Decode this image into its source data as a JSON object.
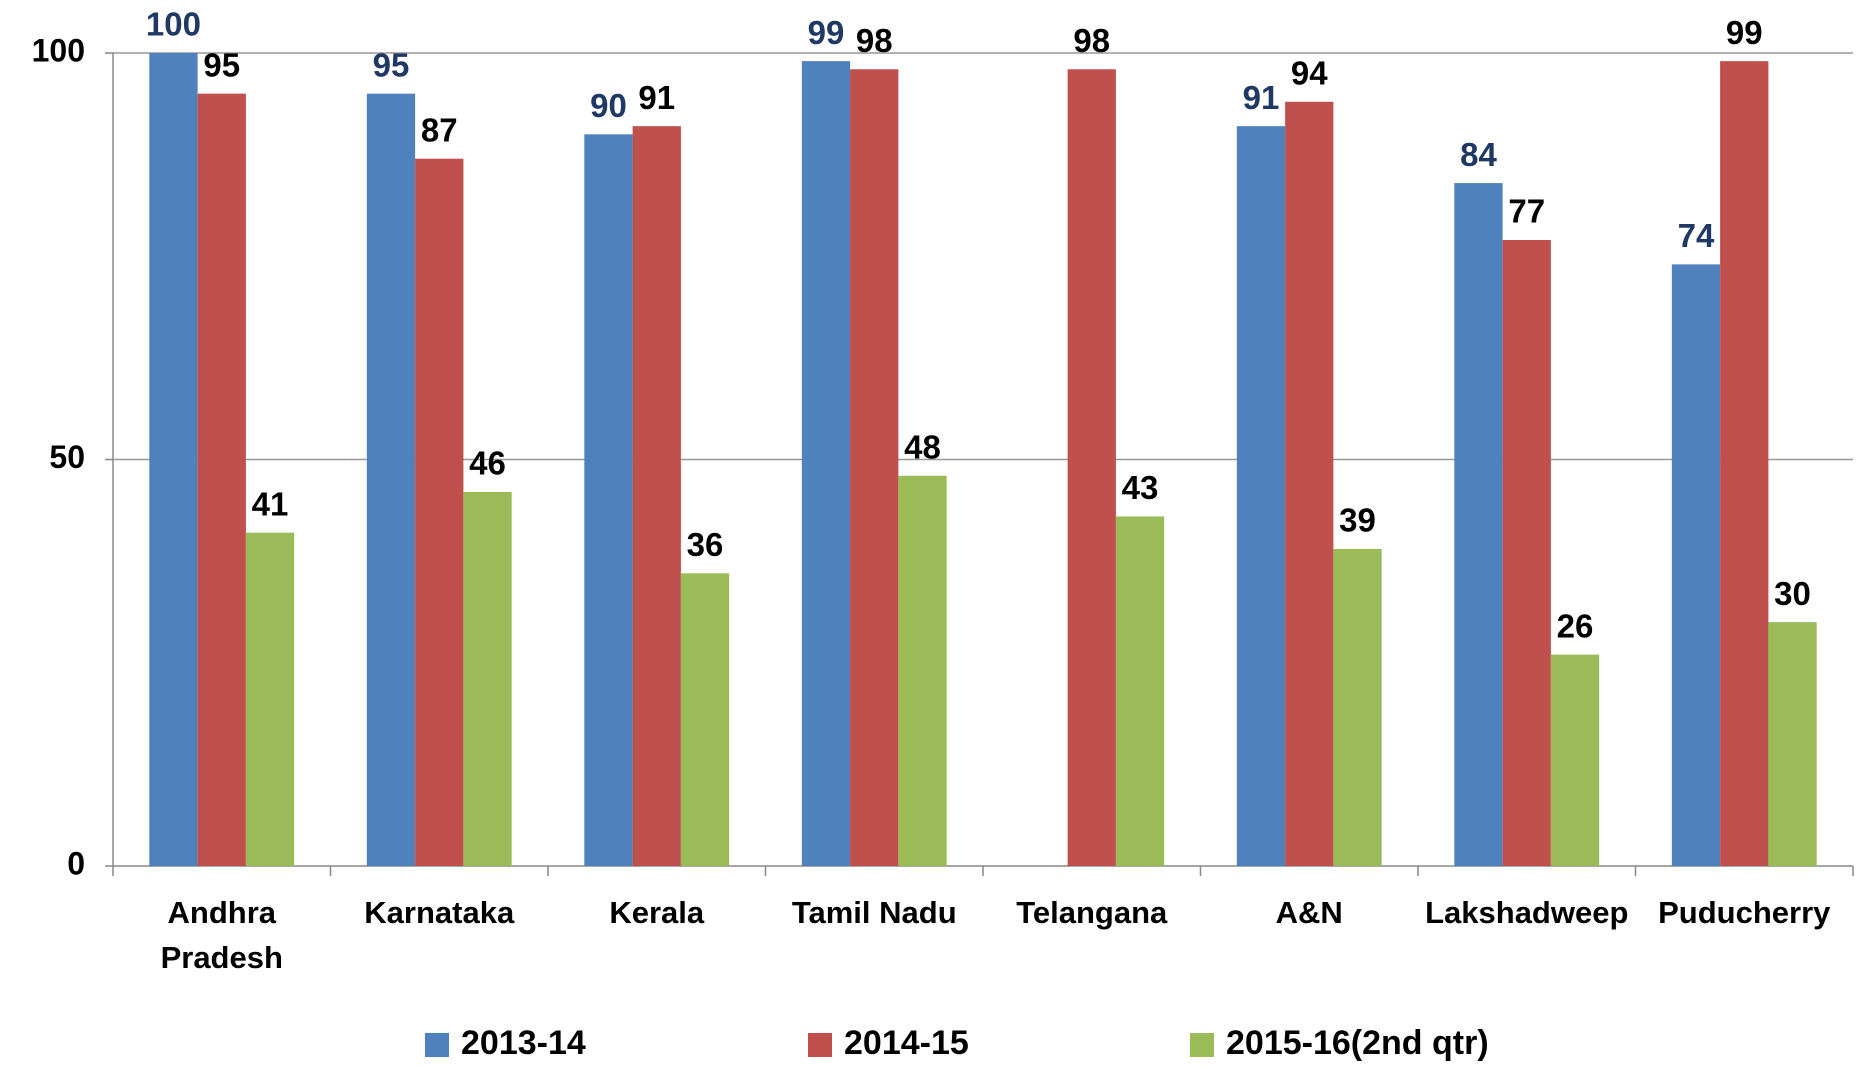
{
  "chart_data": {
    "type": "bar",
    "categories": [
      "Andhra Pradesh",
      "Karnataka",
      "Kerala",
      "Tamil Nadu",
      "Telangana",
      "A&N",
      "Lakshadweep",
      "Puducherry"
    ],
    "series": [
      {
        "name": "2013-14",
        "color": "#4f81bd",
        "label_color": "#1f3864",
        "values": [
          100,
          95,
          90,
          99,
          null,
          91,
          84,
          74
        ]
      },
      {
        "name": "2014-15",
        "color": "#c0504d",
        "label_color": "#000000",
        "values": [
          95,
          87,
          91,
          98,
          98,
          94,
          77,
          99
        ]
      },
      {
        "name": "2015-16(2nd qtr)",
        "color": "#9bbb59",
        "label_color": "#000000",
        "values": [
          41,
          46,
          36,
          48,
          43,
          39,
          26,
          30
        ]
      }
    ],
    "ylim": [
      0,
      100
    ],
    "yticks": [
      0,
      50,
      100
    ],
    "grid": true,
    "legend": "bottom"
  }
}
